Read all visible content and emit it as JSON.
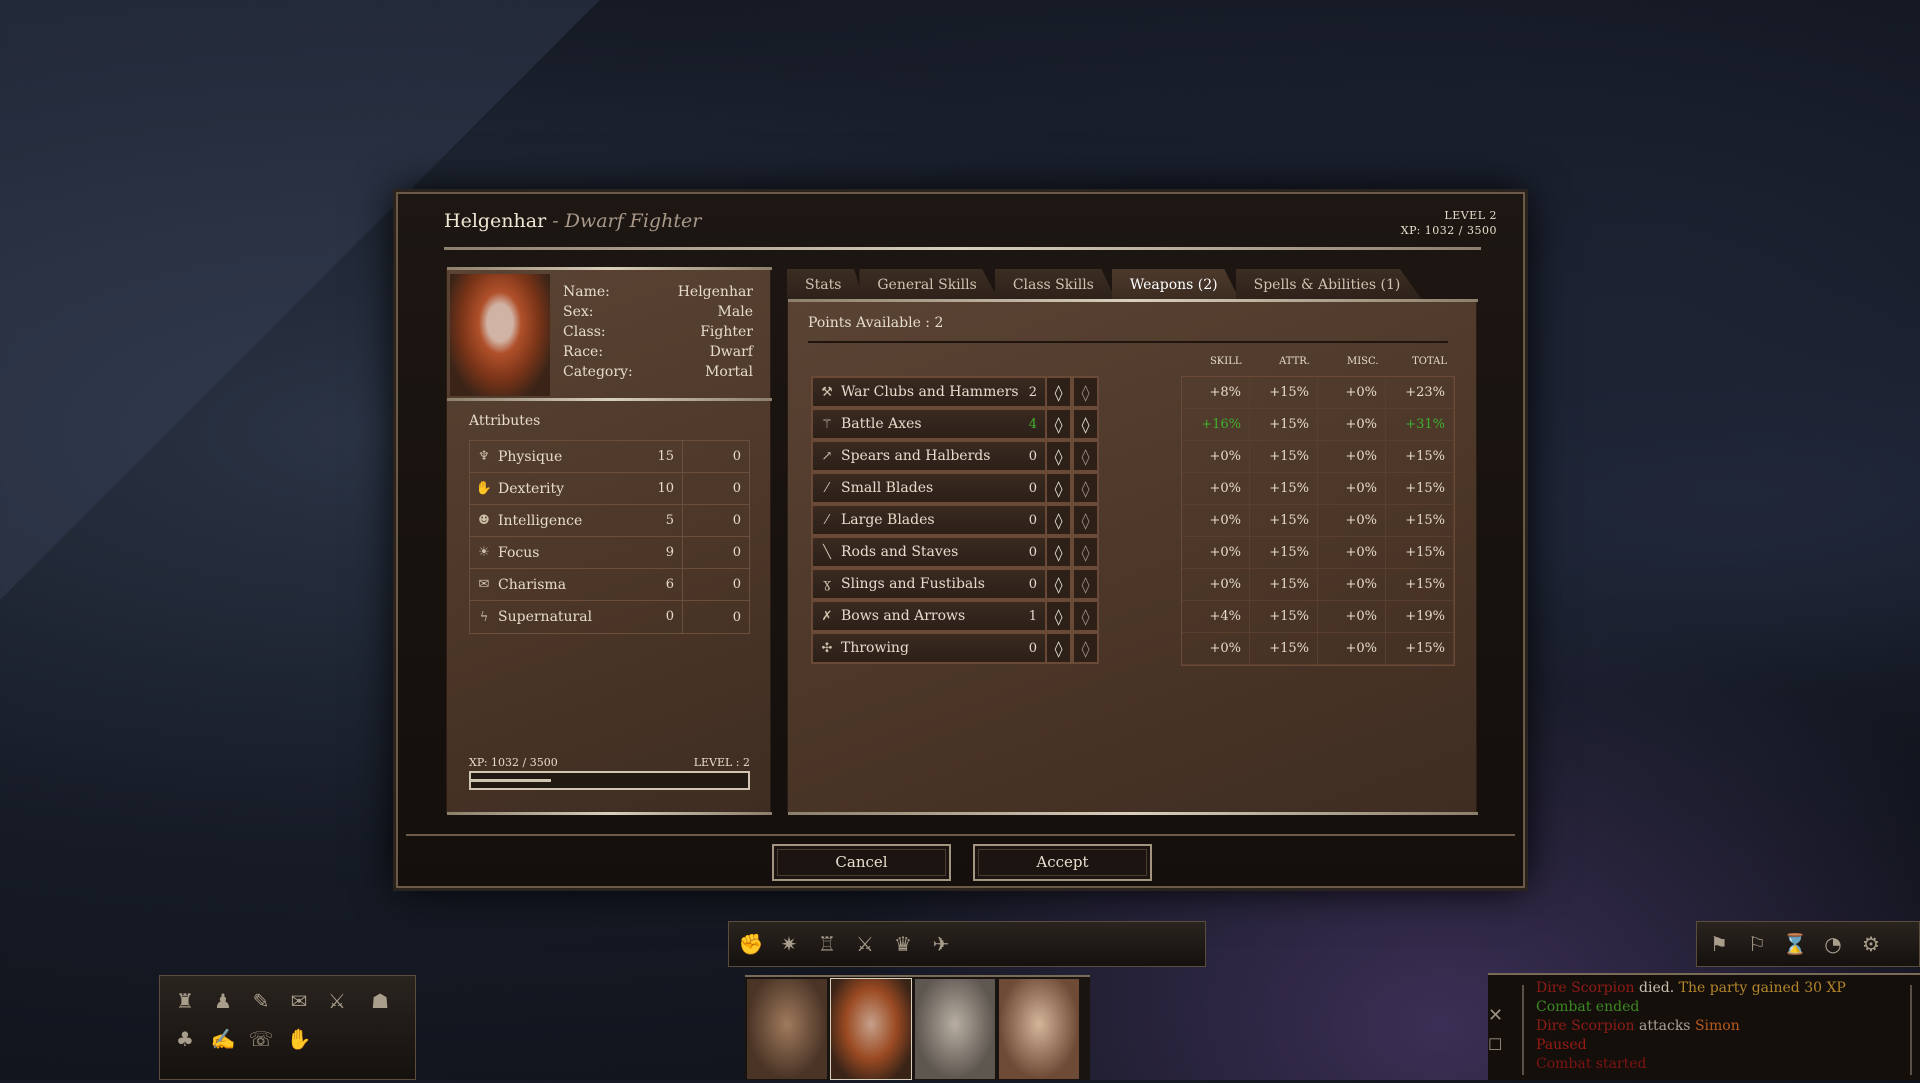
{
  "header": {
    "name": "Helgenhar",
    "subtitle": "- Dwarf Fighter",
    "level": "LEVEL 2",
    "xp": "XP: 1032 / 3500"
  },
  "character": {
    "labels": [
      "Name:",
      "Sex:",
      "Class:",
      "Race:",
      "Category:"
    ],
    "values": [
      "Helgenhar",
      "Male",
      "Fighter",
      "Dwarf",
      "Mortal"
    ]
  },
  "attributes": {
    "title": "Attributes",
    "rows": [
      {
        "icon": "physique-icon",
        "glyph": "♆",
        "name": "Physique",
        "value": "15",
        "bonus": "0"
      },
      {
        "icon": "dexterity-icon",
        "glyph": "✋",
        "name": "Dexterity",
        "value": "10",
        "bonus": "0"
      },
      {
        "icon": "intelligence-icon",
        "glyph": "☻",
        "name": "Intelligence",
        "value": "5",
        "bonus": "0"
      },
      {
        "icon": "focus-icon",
        "glyph": "☀",
        "name": "Focus",
        "value": "9",
        "bonus": "0"
      },
      {
        "icon": "charisma-icon",
        "glyph": "✉",
        "name": "Charisma",
        "value": "6",
        "bonus": "0"
      },
      {
        "icon": "supernatural-icon",
        "glyph": "ϟ",
        "name": "Supernatural",
        "value": "0",
        "bonus": "0"
      }
    ]
  },
  "xp_footer": {
    "xp": "XP: 1032 / 3500",
    "level": "LEVEL : 2",
    "progress": 0.29
  },
  "tabs": [
    {
      "label": "Stats"
    },
    {
      "label": "General Skills"
    },
    {
      "label": "Class Skills"
    },
    {
      "label": "Weapons (2)",
      "active": true
    },
    {
      "label": "Spells & Abilities (1)"
    }
  ],
  "points_available": "Points Available : 2",
  "columns": [
    "SKILL",
    "ATTR.",
    "MISC.",
    "TOTAL"
  ],
  "weapons": [
    {
      "icon": "hammer-icon",
      "glyph": "⚒",
      "name": "War Clubs and Hammers",
      "points": "2",
      "skill": "+8%",
      "attr": "+15%",
      "misc": "+0%",
      "total": "+23%"
    },
    {
      "icon": "axe-icon",
      "glyph": "⚚",
      "name": "Battle Axes",
      "points": "4",
      "skill": "+16%",
      "attr": "+15%",
      "misc": "+0%",
      "total": "+31%",
      "highlight": true
    },
    {
      "icon": "spear-icon",
      "glyph": "↗",
      "name": "Spears and Halberds",
      "points": "0",
      "skill": "+0%",
      "attr": "+15%",
      "misc": "+0%",
      "total": "+15%"
    },
    {
      "icon": "dagger-icon",
      "glyph": "⁄",
      "name": "Small Blades",
      "points": "0",
      "skill": "+0%",
      "attr": "+15%",
      "misc": "+0%",
      "total": "+15%"
    },
    {
      "icon": "sword-icon",
      "glyph": "⁄",
      "name": "Large Blades",
      "points": "0",
      "skill": "+0%",
      "attr": "+15%",
      "misc": "+0%",
      "total": "+15%"
    },
    {
      "icon": "staff-icon",
      "glyph": "╲",
      "name": "Rods and Staves",
      "points": "0",
      "skill": "+0%",
      "attr": "+15%",
      "misc": "+0%",
      "total": "+15%"
    },
    {
      "icon": "sling-icon",
      "glyph": "ɣ",
      "name": "Slings and Fustibals",
      "points": "0",
      "skill": "+0%",
      "attr": "+15%",
      "misc": "+0%",
      "total": "+15%"
    },
    {
      "icon": "bow-icon",
      "glyph": "✗",
      "name": "Bows and Arrows",
      "points": "1",
      "skill": "+4%",
      "attr": "+15%",
      "misc": "+0%",
      "total": "+19%"
    },
    {
      "icon": "throwing-icon",
      "glyph": "✣",
      "name": "Throwing",
      "points": "0",
      "skill": "+0%",
      "attr": "+15%",
      "misc": "+0%",
      "total": "+15%"
    }
  ],
  "buttons": {
    "cancel": "Cancel",
    "accept": "Accept"
  },
  "combat_log": [
    [
      {
        "t": "Dire Scorpion",
        "c": "#8e1c16"
      },
      {
        "t": " died. ",
        "c": "#c9c0b0"
      },
      {
        "t": "The party gained 30 XP",
        "c": "#b3862a"
      }
    ],
    [
      {
        "t": "Combat ended",
        "c": "#3c8a22"
      }
    ],
    [
      {
        "t": "Dire Scorpion",
        "c": "#8e1c16"
      },
      {
        "t": " attacks ",
        "c": "#a9a095"
      },
      {
        "t": "Simon",
        "c": "#b85a1c"
      }
    ],
    [
      {
        "t": "Paused",
        "c": "#9a1a14"
      }
    ],
    [
      {
        "t": "Combat started",
        "c": "#7c1410"
      }
    ]
  ],
  "colors": {
    "accent_green": "#3fb02c",
    "panel": "#4a3527",
    "frame": "#d8cfbc"
  }
}
